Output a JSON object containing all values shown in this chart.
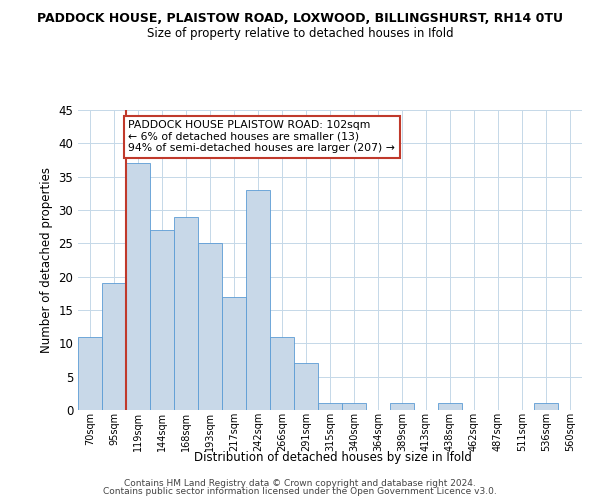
{
  "title": "PADDOCK HOUSE, PLAISTOW ROAD, LOXWOOD, BILLINGSHURST, RH14 0TU",
  "subtitle": "Size of property relative to detached houses in Ifold",
  "xlabel": "Distribution of detached houses by size in Ifold",
  "ylabel": "Number of detached properties",
  "bar_color": "#c8d8e8",
  "bar_edge_color": "#5b9bd5",
  "bar_categories": [
    "70sqm",
    "95sqm",
    "119sqm",
    "144sqm",
    "168sqm",
    "193sqm",
    "217sqm",
    "242sqm",
    "266sqm",
    "291sqm",
    "315sqm",
    "340sqm",
    "364sqm",
    "389sqm",
    "413sqm",
    "438sqm",
    "462sqm",
    "487sqm",
    "511sqm",
    "536sqm",
    "560sqm"
  ],
  "bar_values": [
    11,
    19,
    37,
    27,
    29,
    25,
    17,
    33,
    11,
    7,
    1,
    1,
    0,
    1,
    0,
    1,
    0,
    0,
    0,
    1,
    0
  ],
  "ylim": [
    0,
    45
  ],
  "yticks": [
    0,
    5,
    10,
    15,
    20,
    25,
    30,
    35,
    40,
    45
  ],
  "vline_color": "#c0392b",
  "annotation_text": "PADDOCK HOUSE PLAISTOW ROAD: 102sqm\n← 6% of detached houses are smaller (13)\n94% of semi-detached houses are larger (207) →",
  "annotation_box_color": "#ffffff",
  "annotation_box_edge_color": "#c0392b",
  "footer_line1": "Contains HM Land Registry data © Crown copyright and database right 2024.",
  "footer_line2": "Contains public sector information licensed under the Open Government Licence v3.0.",
  "background_color": "#ffffff",
  "grid_color": "#c5d8e8"
}
